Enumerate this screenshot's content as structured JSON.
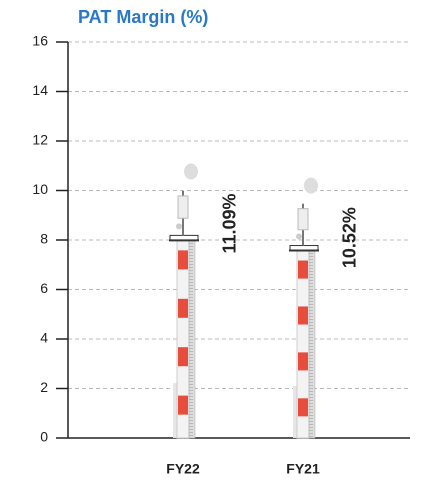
{
  "chart_data": {
    "type": "bar",
    "title": "PAT Margin (%)",
    "categories": [
      "FY22",
      "FY21"
    ],
    "values": [
      11.09,
      10.52
    ],
    "value_labels": [
      "11.09%",
      "10.52%"
    ],
    "ylim": [
      0,
      16
    ],
    "yticks": [
      0,
      2,
      4,
      6,
      8,
      10,
      12,
      14,
      16
    ],
    "grid": true,
    "color": "#e84c3d"
  }
}
